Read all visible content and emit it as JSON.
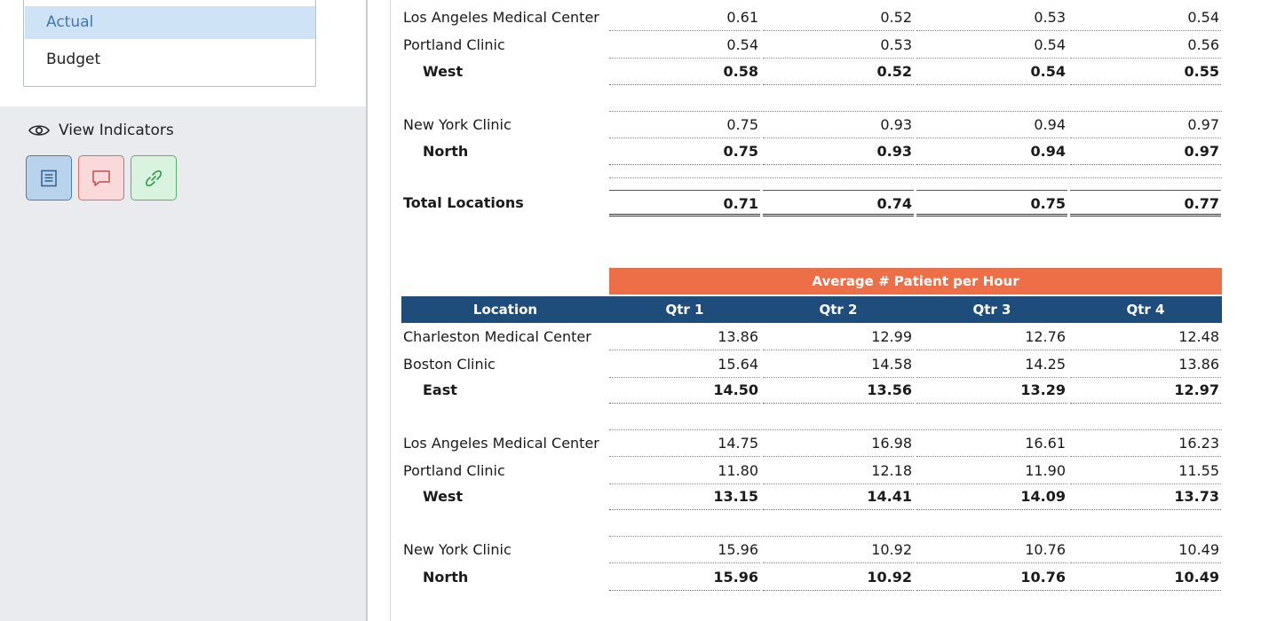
{
  "scenario_list": {
    "items": [
      {
        "label": "Actual",
        "selected": true
      },
      {
        "label": "Budget",
        "selected": false
      }
    ]
  },
  "indicators": {
    "label": "View Indicators",
    "buttons": [
      {
        "icon": "document-lines-icon",
        "color": "#4a7fb0"
      },
      {
        "icon": "comment-icon",
        "color": "#d86b6b"
      },
      {
        "icon": "link-icon",
        "color": "#54b56a"
      }
    ]
  },
  "table1": {
    "rows": [
      {
        "location": "Los Angeles Medical Center",
        "q1": "0.61",
        "q2": "0.52",
        "q3": "0.53",
        "q4": "0.54"
      },
      {
        "location": "Portland Clinic",
        "q1": "0.54",
        "q2": "0.53",
        "q3": "0.54",
        "q4": "0.56"
      },
      {
        "location": "West",
        "q1": "0.58",
        "q2": "0.52",
        "q3": "0.54",
        "q4": "0.55"
      },
      {
        "location": "New York Clinic",
        "q1": "0.75",
        "q2": "0.93",
        "q3": "0.94",
        "q4": "0.97"
      },
      {
        "location": "North",
        "q1": "0.75",
        "q2": "0.93",
        "q3": "0.94",
        "q4": "0.97"
      },
      {
        "location": "Total Locations",
        "q1": "0.71",
        "q2": "0.74",
        "q3": "0.75",
        "q4": "0.77"
      }
    ]
  },
  "table2": {
    "section_title": "Average # Patient per Hour",
    "columns": {
      "location": "Location",
      "q1": "Qtr 1",
      "q2": "Qtr 2",
      "q3": "Qtr 3",
      "q4": "Qtr 4"
    },
    "rows": [
      {
        "location": "Charleston Medical Center",
        "q1": "13.86",
        "q2": "12.99",
        "q3": "12.76",
        "q4": "12.48"
      },
      {
        "location": "Boston Clinic",
        "q1": "15.64",
        "q2": "14.58",
        "q3": "14.25",
        "q4": "13.86"
      },
      {
        "location": "East",
        "q1": "14.50",
        "q2": "13.56",
        "q3": "13.29",
        "q4": "12.97"
      },
      {
        "location": "Los Angeles Medical Center",
        "q1": "14.75",
        "q2": "16.98",
        "q3": "16.61",
        "q4": "16.23"
      },
      {
        "location": "Portland Clinic",
        "q1": "11.80",
        "q2": "12.18",
        "q3": "11.90",
        "q4": "11.55"
      },
      {
        "location": "West",
        "q1": "13.15",
        "q2": "14.41",
        "q3": "14.09",
        "q4": "13.73"
      },
      {
        "location": "New York Clinic",
        "q1": "15.96",
        "q2": "10.92",
        "q3": "10.76",
        "q4": "10.49"
      },
      {
        "location": "North",
        "q1": "15.96",
        "q2": "10.92",
        "q3": "10.76",
        "q4": "10.49"
      }
    ]
  },
  "colors": {
    "section_header_bg": "#ec6f47",
    "column_header_bg": "#1e4d7c",
    "selected_item_bg": "#cfe3f6",
    "sidebar_bg": "#e9ebef"
  }
}
